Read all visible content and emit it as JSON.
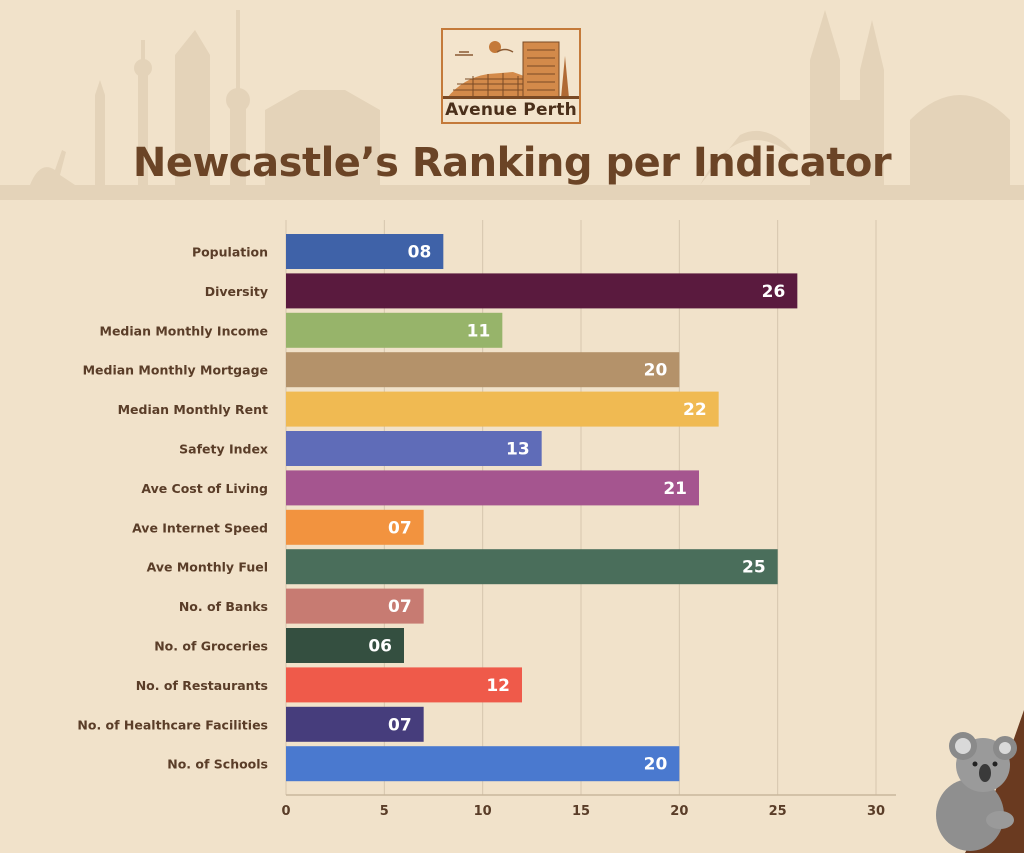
{
  "logo": {
    "text": "Avenue Perth"
  },
  "chart_data": {
    "type": "bar",
    "orientation": "horizontal",
    "title": "Newcastle’s Ranking per Indicator",
    "categories": [
      "Population",
      "Diversity",
      "Median Monthly Income",
      "Median Monthly Mortgage",
      "Median Monthly Rent",
      "Safety Index",
      "Ave Cost of Living",
      "Ave Internet Speed",
      "Ave Monthly Fuel",
      "No. of Banks",
      "No. of Groceries",
      "No. of Restaurants",
      "No. of Healthcare Facilities",
      "No. of Schools"
    ],
    "values": [
      8,
      26,
      11,
      20,
      22,
      13,
      21,
      7,
      25,
      7,
      6,
      12,
      7,
      20
    ],
    "value_labels": [
      "08",
      "26",
      "11",
      "20",
      "22",
      "13",
      "21",
      "07",
      "25",
      "07",
      "06",
      "12",
      "07",
      "20"
    ],
    "colors": [
      "#3f62a8",
      "#5a1a3e",
      "#97b46a",
      "#b4926a",
      "#f0ba52",
      "#5f6cb8",
      "#a5558f",
      "#f2933f",
      "#4a6e5b",
      "#c77b72",
      "#344f40",
      "#ef5a4a",
      "#463d7c",
      "#4a79cf"
    ],
    "xlim": [
      0,
      30
    ],
    "xticks": [
      0,
      5,
      10,
      15,
      20,
      25,
      30
    ],
    "grid": true,
    "xlabel": "",
    "ylabel": ""
  }
}
